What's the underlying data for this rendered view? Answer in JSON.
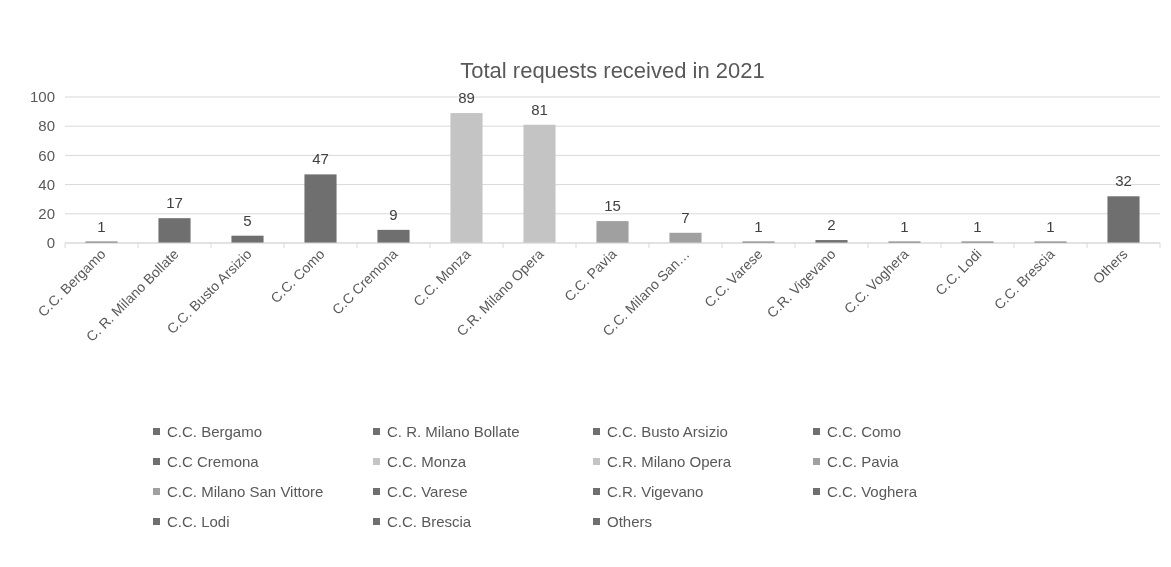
{
  "chart_data": {
    "type": "bar",
    "title": "Total requests received in 2021",
    "categories": [
      "C.C. Bergamo",
      "C. R. Milano Bollate",
      "C.C. Busto Arsizio",
      "C.C. Como",
      "C.C Cremona",
      "C.C. Monza",
      "C.R. Milano Opera",
      "C.C. Pavia",
      "C.C. Milano San…",
      "C.C. Varese",
      "C.R. Vigevano",
      "C.C. Voghera",
      "C.C. Lodi",
      "C.C. Brescia",
      "Others"
    ],
    "series": [
      {
        "name": "C.C. Bergamo",
        "color": "#6f6f6f",
        "values": [
          1,
          null,
          null,
          null,
          null,
          null,
          null,
          null,
          null,
          null,
          null,
          null,
          null,
          null,
          null
        ]
      },
      {
        "name": "C. R. Milano Bollate",
        "color": "#6f6f6f",
        "values": [
          null,
          17,
          null,
          null,
          null,
          null,
          null,
          null,
          null,
          null,
          null,
          null,
          null,
          null,
          null
        ]
      },
      {
        "name": "C.C. Busto Arsizio",
        "color": "#6f6f6f",
        "values": [
          null,
          null,
          5,
          null,
          null,
          null,
          null,
          null,
          null,
          null,
          null,
          null,
          null,
          null,
          null
        ]
      },
      {
        "name": "C.C. Como",
        "color": "#6f6f6f",
        "values": [
          null,
          null,
          null,
          47,
          null,
          null,
          null,
          null,
          null,
          null,
          null,
          null,
          null,
          null,
          null
        ]
      },
      {
        "name": "C.C Cremona",
        "color": "#6f6f6f",
        "values": [
          null,
          null,
          null,
          null,
          9,
          null,
          null,
          null,
          null,
          null,
          null,
          null,
          null,
          null,
          null
        ]
      },
      {
        "name": "C.C. Monza",
        "color": "#c4c4c4",
        "values": [
          null,
          null,
          null,
          null,
          null,
          89,
          null,
          null,
          null,
          null,
          null,
          null,
          null,
          null,
          null
        ]
      },
      {
        "name": "C.R. Milano Opera",
        "color": "#c4c4c4",
        "values": [
          null,
          null,
          null,
          null,
          null,
          null,
          81,
          null,
          null,
          null,
          null,
          null,
          null,
          null,
          null
        ]
      },
      {
        "name": "C.C. Pavia",
        "color": "#a0a0a0",
        "values": [
          null,
          null,
          null,
          null,
          null,
          null,
          null,
          15,
          null,
          null,
          null,
          null,
          null,
          null,
          null
        ]
      },
      {
        "name": "C.C. Milano San Vittore",
        "color": "#a0a0a0",
        "values": [
          null,
          null,
          null,
          null,
          null,
          null,
          null,
          null,
          7,
          null,
          null,
          null,
          null,
          null,
          null
        ]
      },
      {
        "name": "C.C. Varese",
        "color": "#6f6f6f",
        "values": [
          null,
          null,
          null,
          null,
          null,
          null,
          null,
          null,
          null,
          1,
          null,
          null,
          null,
          null,
          null
        ]
      },
      {
        "name": "C.R. Vigevano",
        "color": "#6f6f6f",
        "values": [
          null,
          null,
          null,
          null,
          null,
          null,
          null,
          null,
          null,
          null,
          2,
          null,
          null,
          null,
          null
        ]
      },
      {
        "name": "C.C. Voghera",
        "color": "#6f6f6f",
        "values": [
          null,
          null,
          null,
          null,
          null,
          null,
          null,
          null,
          null,
          null,
          null,
          1,
          null,
          null,
          null
        ]
      },
      {
        "name": "C.C. Lodi",
        "color": "#6f6f6f",
        "values": [
          null,
          null,
          null,
          null,
          null,
          null,
          null,
          null,
          null,
          null,
          null,
          null,
          1,
          null,
          null
        ]
      },
      {
        "name": "C.C. Brescia",
        "color": "#6f6f6f",
        "values": [
          null,
          null,
          null,
          null,
          null,
          null,
          null,
          null,
          null,
          null,
          null,
          null,
          null,
          1,
          null
        ]
      },
      {
        "name": "Others",
        "color": "#6f6f6f",
        "values": [
          null,
          null,
          null,
          null,
          null,
          null,
          null,
          null,
          null,
          null,
          null,
          null,
          null,
          null,
          32
        ]
      }
    ],
    "ylim": [
      0,
      100
    ],
    "yticks": [
      0,
      20,
      40,
      60,
      80,
      100
    ],
    "grid": "y",
    "legend": "bottom",
    "data_labels": true
  }
}
